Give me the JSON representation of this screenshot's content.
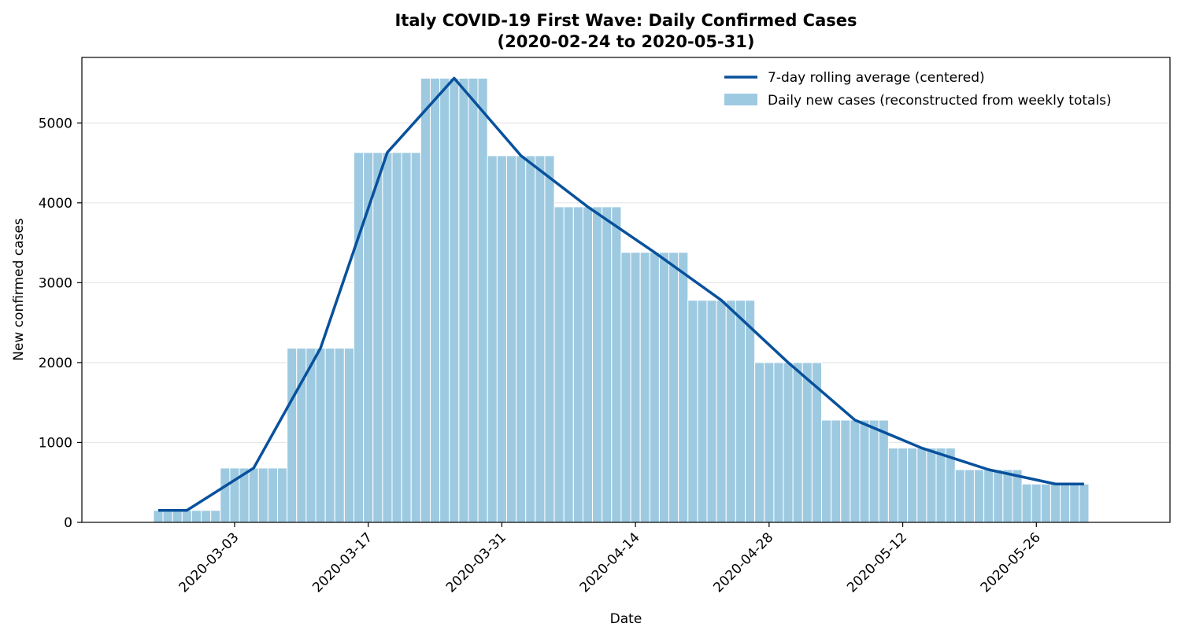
{
  "chart_data": {
    "type": "bar",
    "title_line1": "Italy COVID-19 First Wave: Daily Confirmed Cases",
    "title_line2": "(2020-02-24 to 2020-05-31)",
    "xlabel": "Date",
    "ylabel": "New confirmed cases",
    "x_ticks": [
      "2020-03-03",
      "2020-03-17",
      "2020-03-31",
      "2020-04-14",
      "2020-04-28",
      "2020-05-12",
      "2020-05-26"
    ],
    "y_ticks": [
      0,
      1000,
      2000,
      3000,
      4000,
      5000
    ],
    "ylim": [
      0,
      5820
    ],
    "xlim": [
      "2020-02-16",
      "2020-06-09"
    ],
    "grid": "horizontal",
    "legend_position": "top-right",
    "colors": {
      "bars": "#9ecae1",
      "bar_edge": "#ffffff",
      "line": "#08519c",
      "grid": "#e6e6e6"
    },
    "series": [
      {
        "name": "Daily new cases (reconstructed from weekly totals)",
        "kind": "bar",
        "weeks": [
          {
            "start": "2020-02-24",
            "days": 7,
            "value": 150
          },
          {
            "start": "2020-03-02",
            "days": 7,
            "value": 680
          },
          {
            "start": "2020-03-09",
            "days": 7,
            "value": 2180
          },
          {
            "start": "2020-03-16",
            "days": 7,
            "value": 4630
          },
          {
            "start": "2020-03-23",
            "days": 7,
            "value": 5560
          },
          {
            "start": "2020-03-30",
            "days": 7,
            "value": 4590
          },
          {
            "start": "2020-04-06",
            "days": 7,
            "value": 3950
          },
          {
            "start": "2020-04-13",
            "days": 7,
            "value": 3380
          },
          {
            "start": "2020-04-20",
            "days": 7,
            "value": 2780
          },
          {
            "start": "2020-04-27",
            "days": 7,
            "value": 2000
          },
          {
            "start": "2020-05-04",
            "days": 7,
            "value": 1280
          },
          {
            "start": "2020-05-11",
            "days": 7,
            "value": 930
          },
          {
            "start": "2020-05-18",
            "days": 7,
            "value": 660
          },
          {
            "start": "2020-05-25",
            "days": 7,
            "value": 480
          }
        ]
      },
      {
        "name": "7-day rolling average (centered)",
        "kind": "line",
        "points": [
          {
            "x": "2020-02-24",
            "y": 150
          },
          {
            "x": "2020-02-27",
            "y": 150
          },
          {
            "x": "2020-03-05",
            "y": 680
          },
          {
            "x": "2020-03-12",
            "y": 2180
          },
          {
            "x": "2020-03-19",
            "y": 4630
          },
          {
            "x": "2020-03-26",
            "y": 5560
          },
          {
            "x": "2020-04-02",
            "y": 4590
          },
          {
            "x": "2020-04-09",
            "y": 3950
          },
          {
            "x": "2020-04-16",
            "y": 3380
          },
          {
            "x": "2020-04-23",
            "y": 2780
          },
          {
            "x": "2020-04-30",
            "y": 2000
          },
          {
            "x": "2020-05-07",
            "y": 1280
          },
          {
            "x": "2020-05-14",
            "y": 930
          },
          {
            "x": "2020-05-21",
            "y": 660
          },
          {
            "x": "2020-05-28",
            "y": 480
          },
          {
            "x": "2020-05-31",
            "y": 480
          }
        ]
      }
    ]
  }
}
